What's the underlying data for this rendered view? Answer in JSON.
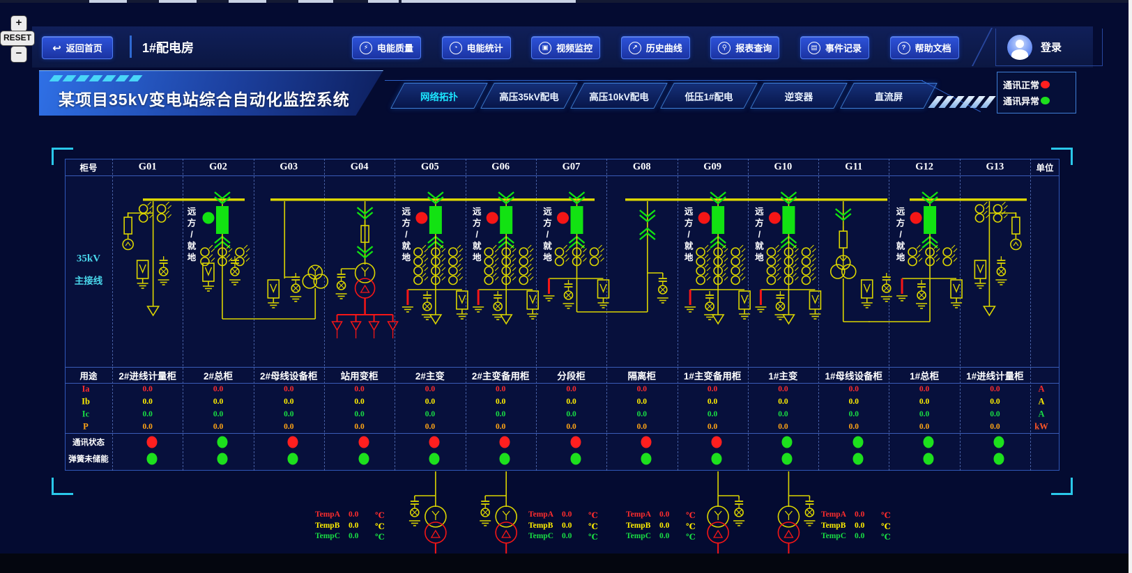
{
  "zoom_controls": {
    "zoom_in": "+",
    "reset": "RESET",
    "zoom_out": "−"
  },
  "header": {
    "back": "返回首页",
    "room": "1#配电房",
    "buttons": [
      "电能质量",
      "电能统计",
      "视频监控",
      "历史曲线",
      "报表查询",
      "事件记录",
      "帮助文档"
    ],
    "login": "登录"
  },
  "banner": {
    "title": "某项目35kV变电站综合自动化监控系统",
    "tabs": [
      {
        "label": "网络拓扑",
        "active": true
      },
      {
        "label": "高压35kV配电",
        "active": false
      },
      {
        "label": "高压10kV配电",
        "active": false
      },
      {
        "label": "低压1#配电",
        "active": false
      },
      {
        "label": "逆变器",
        "active": false
      },
      {
        "label": "直流屏",
        "active": false
      }
    ],
    "legend": [
      {
        "label": "通讯正常",
        "color": "#ff1f1f"
      },
      {
        "label": "通讯异常",
        "color": "#1de01d"
      }
    ]
  },
  "panel": {
    "cabinet_label": "柜号",
    "unit_label": "单位",
    "usage_label": "用途",
    "bus_label1": "35kV",
    "bus_label2": "主接线",
    "comm_label": "通讯状态",
    "spring_label": "弹簧未储能",
    "remote_chars": [
      "远",
      "方",
      "/",
      "就",
      "地"
    ],
    "measures": [
      {
        "label": "Ia",
        "unit": "A",
        "color": "#ff2d2d",
        "unit_color": "#ff2d2d"
      },
      {
        "label": "Ib",
        "unit": "A",
        "color": "#ffee00",
        "unit_color": "#ffee00"
      },
      {
        "label": "Ic",
        "unit": "A",
        "color": "#19dd44",
        "unit_color": "#19dd44"
      },
      {
        "label": "P",
        "unit": "kW",
        "color": "#ffa415",
        "unit_color": "#ff5526"
      }
    ],
    "columns": [
      {
        "id": "G01",
        "usage": "2#进线计量柜",
        "values": [
          "0.0",
          "0.0",
          "0.0",
          "0.0"
        ],
        "comm": "#ff1f1f",
        "spring": "#1de01d",
        "diagram": "metering_l"
      },
      {
        "id": "G02",
        "usage": "2#总柜",
        "values": [
          "0.0",
          "0.0",
          "0.0",
          "0.0"
        ],
        "comm": "#1de01d",
        "spring": "#1de01d",
        "diagram": "incomer"
      },
      {
        "id": "G03",
        "usage": "2#母线设备柜",
        "values": [
          "0.0",
          "0.0",
          "0.0",
          "0.0"
        ],
        "comm": "#ff1f1f",
        "spring": "#1de01d",
        "diagram": "buspt_l"
      },
      {
        "id": "G04",
        "usage": "站用变柜",
        "values": [
          "0.0",
          "0.0",
          "0.0",
          "0.0"
        ],
        "comm": "#ff1f1f",
        "spring": "#1de01d",
        "diagram": "station"
      },
      {
        "id": "G05",
        "usage": "2#主变",
        "values": [
          "0.0",
          "0.0",
          "0.0",
          "0.0"
        ],
        "comm": "#ff1f1f",
        "spring": "#1de01d",
        "diagram": "feeder",
        "ct_rows": 4,
        "end": "arrow"
      },
      {
        "id": "G06",
        "usage": "2#主变备用柜",
        "values": [
          "0.0",
          "0.0",
          "0.0",
          "0.0"
        ],
        "comm": "#ff1f1f",
        "spring": "#1de01d",
        "diagram": "feeder",
        "ct_rows": 4,
        "end": "arrow"
      },
      {
        "id": "G07",
        "usage": "分段柜",
        "values": [
          "0.0",
          "0.0",
          "0.0",
          "0.0"
        ],
        "comm": "#ff1f1f",
        "spring": "#1de01d",
        "diagram": "feeder",
        "ct_rows": 2,
        "end": "link_r"
      },
      {
        "id": "G08",
        "usage": "隔离柜",
        "values": [
          "0.0",
          "0.0",
          "0.0",
          "0.0"
        ],
        "comm": "#ff1f1f",
        "spring": "#1de01d",
        "diagram": "isolator"
      },
      {
        "id": "G09",
        "usage": "1#主变备用柜",
        "values": [
          "0.0",
          "0.0",
          "0.0",
          "0.0"
        ],
        "comm": "#ff1f1f",
        "spring": "#1de01d",
        "diagram": "feeder",
        "ct_rows": 4,
        "end": "arrow"
      },
      {
        "id": "G10",
        "usage": "1#主变",
        "values": [
          "0.0",
          "0.0",
          "0.0",
          "0.0"
        ],
        "comm": "#1de01d",
        "spring": "#1de01d",
        "diagram": "feeder",
        "ct_rows": 4,
        "end": "arrow"
      },
      {
        "id": "G11",
        "usage": "1#母线设备柜",
        "values": [
          "0.0",
          "0.0",
          "0.0",
          "0.0"
        ],
        "comm": "#1de01d",
        "spring": "#1de01d",
        "diagram": "buspt_r"
      },
      {
        "id": "G12",
        "usage": "1#总柜",
        "values": [
          "0.0",
          "0.0",
          "0.0",
          "0.0"
        ],
        "comm": "#1de01d",
        "spring": "#1de01d",
        "diagram": "feeder",
        "ct_rows": 2,
        "end": "link_l"
      },
      {
        "id": "G13",
        "usage": "1#进线计量柜",
        "values": [
          "0.0",
          "0.0",
          "0.0",
          "0.0"
        ],
        "comm": "#1de01d",
        "spring": "#1de01d",
        "diagram": "metering_r"
      }
    ]
  },
  "temps": {
    "labels": [
      "TempA",
      "TempB",
      "TempC"
    ],
    "unit": "℃",
    "colors": [
      "#ff2d2d",
      "#ffee00",
      "#19dd44"
    ],
    "blocks": [
      [
        "0.0",
        "0.0",
        "0.0"
      ],
      [
        "0.0",
        "0.0",
        "0.0"
      ],
      [
        "0.0",
        "0.0",
        "0.0"
      ],
      [
        "0.0",
        "0.0",
        "0.0"
      ]
    ]
  }
}
